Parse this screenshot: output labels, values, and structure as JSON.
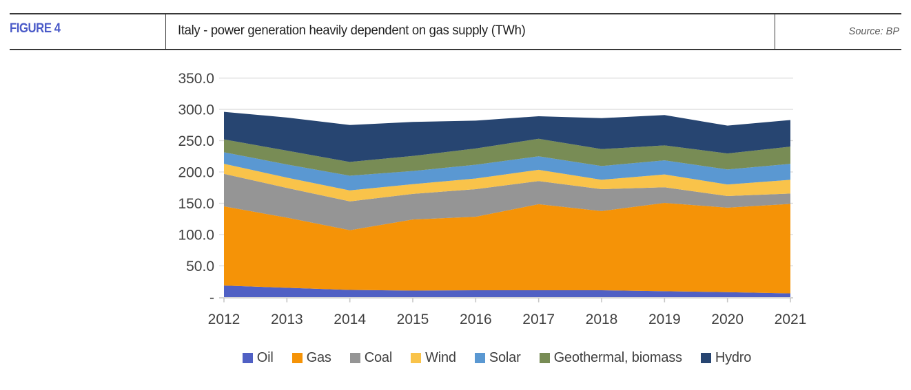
{
  "header": {
    "figure_label": "FIGURE 4",
    "title": "Italy - power generation heavily dependent on gas supply (TWh)",
    "source": "Source: BP"
  },
  "colors": {
    "figure_label": "#4A5AC8",
    "title_text": "#1F1F1F",
    "source_text": "#595959",
    "header_border": "#383838",
    "axis_text": "#404040",
    "gridline": "#D9D9D9",
    "axis_line": "#C6C6C6"
  },
  "chart_data": {
    "type": "area",
    "stacked": true,
    "title": "Italy - power generation heavily dependent on gas supply (TWh)",
    "unit": "TWh",
    "categories": [
      "2012",
      "2013",
      "2014",
      "2015",
      "2016",
      "2017",
      "2018",
      "2019",
      "2020",
      "2021"
    ],
    "series": [
      {
        "name": "Oil",
        "color": "#5060C4",
        "values": [
          18.5,
          15.0,
          11.5,
          10.5,
          11.0,
          11.0,
          11.0,
          9.5,
          8.0,
          6.0
        ]
      },
      {
        "name": "Gas",
        "color": "#F59307",
        "values": [
          126.5,
          112.0,
          95.5,
          113.5,
          117.5,
          137.5,
          126.5,
          141.0,
          135.0,
          143.0
        ]
      },
      {
        "name": "Coal",
        "color": "#959595",
        "values": [
          52.0,
          47.5,
          46.0,
          41.0,
          44.0,
          37.0,
          35.0,
          25.0,
          18.5,
          16.5
        ]
      },
      {
        "name": "Wind",
        "color": "#F9C34A",
        "values": [
          16.0,
          16.5,
          17.5,
          15.5,
          17.0,
          18.0,
          15.0,
          20.5,
          18.5,
          22.0
        ]
      },
      {
        "name": "Solar",
        "color": "#5A98D2",
        "values": [
          18.5,
          21.0,
          23.5,
          21.0,
          22.0,
          21.5,
          22.0,
          22.5,
          24.0,
          25.5
        ]
      },
      {
        "name": "Geothermal, biomass",
        "color": "#788C55",
        "values": [
          20.5,
          22.0,
          22.0,
          24.0,
          26.0,
          28.0,
          27.0,
          24.0,
          25.5,
          27.5
        ]
      },
      {
        "name": "Hydro",
        "color": "#274571",
        "values": [
          44.0,
          53.0,
          59.0,
          54.5,
          44.5,
          36.0,
          49.5,
          48.5,
          44.5,
          42.5
        ]
      }
    ],
    "ylim": [
      0,
      350
    ],
    "ytick_interval": 50,
    "ytick_labels": [
      "-",
      "50.0",
      "100.0",
      "150.0",
      "200.0",
      "250.0",
      "300.0",
      "350.0"
    ],
    "grid": true,
    "legend_position": "bottom"
  }
}
